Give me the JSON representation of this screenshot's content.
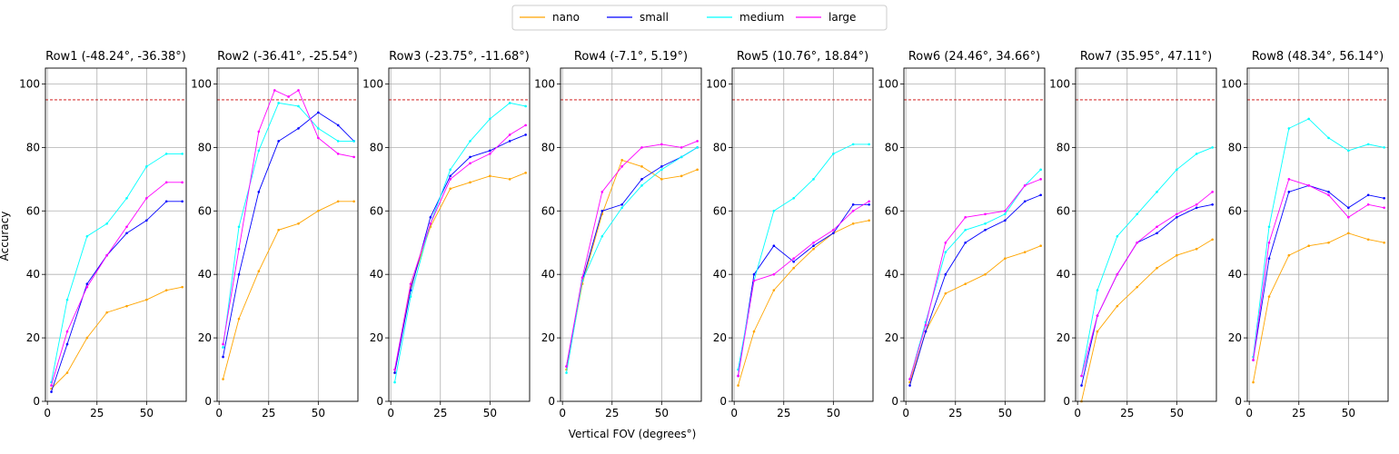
{
  "chart_data": {
    "type": "line",
    "xlabel": "Vertical FOV (degrees°)",
    "ylabel": "Accuracy",
    "xlim": [
      -1,
      70
    ],
    "ylim": [
      0,
      105
    ],
    "xticks": [
      0,
      25,
      50
    ],
    "yticks": [
      0,
      20,
      40,
      60,
      80,
      100
    ],
    "grid": true,
    "legend_position": "top-center",
    "threshold": {
      "value": 95,
      "color": "#cc0000",
      "style": "dashed"
    },
    "legend": [
      {
        "name": "nano",
        "color": "#ffa500"
      },
      {
        "name": "small",
        "color": "#0000ff"
      },
      {
        "name": "medium",
        "color": "#00ffff"
      },
      {
        "name": "large",
        "color": "#ff00ff"
      }
    ],
    "panels": [
      {
        "title": "Row1 (-48.24°, -36.38°)",
        "nano": [
          [
            2,
            4
          ],
          [
            10,
            9
          ],
          [
            20,
            20
          ],
          [
            30,
            28
          ],
          [
            40,
            30
          ],
          [
            50,
            32
          ],
          [
            60,
            35
          ],
          [
            68,
            36
          ]
        ],
        "small": [
          [
            2,
            3
          ],
          [
            10,
            18
          ],
          [
            20,
            37
          ],
          [
            30,
            46
          ],
          [
            40,
            53
          ],
          [
            50,
            57
          ],
          [
            60,
            63
          ],
          [
            68,
            63
          ]
        ],
        "medium": [
          [
            2,
            6
          ],
          [
            10,
            32
          ],
          [
            20,
            52
          ],
          [
            30,
            56
          ],
          [
            40,
            64
          ],
          [
            50,
            74
          ],
          [
            60,
            78
          ],
          [
            68,
            78
          ]
        ],
        "large": [
          [
            2,
            5
          ],
          [
            10,
            22
          ],
          [
            20,
            36
          ],
          [
            30,
            46
          ],
          [
            40,
            55
          ],
          [
            50,
            64
          ],
          [
            60,
            69
          ],
          [
            68,
            69
          ]
        ]
      },
      {
        "title": "Row2 (-36.41°, -25.54°)",
        "nano": [
          [
            2,
            7
          ],
          [
            10,
            26
          ],
          [
            20,
            41
          ],
          [
            30,
            54
          ],
          [
            40,
            56
          ],
          [
            50,
            60
          ],
          [
            60,
            63
          ],
          [
            68,
            63
          ]
        ],
        "small": [
          [
            2,
            14
          ],
          [
            10,
            40
          ],
          [
            20,
            66
          ],
          [
            30,
            82
          ],
          [
            40,
            86
          ],
          [
            50,
            91
          ],
          [
            60,
            87
          ],
          [
            68,
            82
          ]
        ],
        "medium": [
          [
            2,
            17
          ],
          [
            10,
            55
          ],
          [
            20,
            79
          ],
          [
            30,
            94
          ],
          [
            40,
            93
          ],
          [
            50,
            86
          ],
          [
            60,
            82
          ],
          [
            68,
            82
          ]
        ],
        "large": [
          [
            2,
            18
          ],
          [
            10,
            48
          ],
          [
            20,
            85
          ],
          [
            28,
            98
          ],
          [
            35,
            96
          ],
          [
            40,
            98
          ],
          [
            50,
            83
          ],
          [
            60,
            78
          ],
          [
            68,
            77
          ]
        ]
      },
      {
        "title": "Row3 (-23.75°, -11.68°)",
        "nano": [
          [
            2,
            9
          ],
          [
            10,
            36
          ],
          [
            20,
            55
          ],
          [
            30,
            67
          ],
          [
            40,
            69
          ],
          [
            50,
            71
          ],
          [
            60,
            70
          ],
          [
            68,
            72
          ]
        ],
        "small": [
          [
            2,
            9
          ],
          [
            10,
            35
          ],
          [
            20,
            58
          ],
          [
            30,
            71
          ],
          [
            40,
            77
          ],
          [
            50,
            79
          ],
          [
            60,
            82
          ],
          [
            68,
            84
          ]
        ],
        "medium": [
          [
            2,
            6
          ],
          [
            10,
            33
          ],
          [
            20,
            56
          ],
          [
            30,
            73
          ],
          [
            40,
            82
          ],
          [
            50,
            89
          ],
          [
            60,
            94
          ],
          [
            68,
            93
          ]
        ],
        "large": [
          [
            2,
            10
          ],
          [
            10,
            37
          ],
          [
            20,
            56
          ],
          [
            30,
            70
          ],
          [
            40,
            75
          ],
          [
            50,
            78
          ],
          [
            60,
            84
          ],
          [
            68,
            87
          ]
        ]
      },
      {
        "title": "Row4 (-7.1°, 5.19°)",
        "nano": [
          [
            2,
            10
          ],
          [
            10,
            37
          ],
          [
            20,
            59
          ],
          [
            30,
            76
          ],
          [
            40,
            74
          ],
          [
            50,
            70
          ],
          [
            60,
            71
          ],
          [
            68,
            73
          ]
        ],
        "small": [
          [
            2,
            11
          ],
          [
            10,
            38
          ],
          [
            20,
            60
          ],
          [
            30,
            62
          ],
          [
            40,
            70
          ],
          [
            50,
            74
          ],
          [
            60,
            77
          ],
          [
            68,
            80
          ]
        ],
        "medium": [
          [
            2,
            9
          ],
          [
            10,
            38
          ],
          [
            20,
            52
          ],
          [
            30,
            61
          ],
          [
            40,
            68
          ],
          [
            50,
            73
          ],
          [
            60,
            77
          ],
          [
            68,
            80
          ]
        ],
        "large": [
          [
            2,
            11
          ],
          [
            10,
            39
          ],
          [
            20,
            66
          ],
          [
            30,
            74
          ],
          [
            40,
            80
          ],
          [
            50,
            81
          ],
          [
            60,
            80
          ],
          [
            68,
            82
          ]
        ]
      },
      {
        "title": "Row5 (10.76°, 18.84°)",
        "nano": [
          [
            2,
            5
          ],
          [
            10,
            22
          ],
          [
            20,
            35
          ],
          [
            30,
            42
          ],
          [
            40,
            48
          ],
          [
            50,
            53
          ],
          [
            60,
            56
          ],
          [
            68,
            57
          ]
        ],
        "small": [
          [
            2,
            8
          ],
          [
            10,
            40
          ],
          [
            20,
            49
          ],
          [
            30,
            44
          ],
          [
            40,
            49
          ],
          [
            50,
            53
          ],
          [
            60,
            62
          ],
          [
            68,
            62
          ]
        ],
        "medium": [
          [
            2,
            10
          ],
          [
            10,
            38
          ],
          [
            20,
            60
          ],
          [
            30,
            64
          ],
          [
            40,
            70
          ],
          [
            50,
            78
          ],
          [
            60,
            81
          ],
          [
            68,
            81
          ]
        ],
        "large": [
          [
            2,
            8
          ],
          [
            10,
            38
          ],
          [
            20,
            40
          ],
          [
            30,
            45
          ],
          [
            40,
            50
          ],
          [
            50,
            54
          ],
          [
            60,
            60
          ],
          [
            68,
            63
          ]
        ]
      },
      {
        "title": "Row6 (24.46°, 34.66°)",
        "nano": [
          [
            2,
            6
          ],
          [
            10,
            22
          ],
          [
            20,
            34
          ],
          [
            30,
            37
          ],
          [
            40,
            40
          ],
          [
            50,
            45
          ],
          [
            60,
            47
          ],
          [
            68,
            49
          ]
        ],
        "small": [
          [
            2,
            5
          ],
          [
            10,
            22
          ],
          [
            20,
            40
          ],
          [
            30,
            50
          ],
          [
            40,
            54
          ],
          [
            50,
            57
          ],
          [
            60,
            63
          ],
          [
            68,
            65
          ]
        ],
        "medium": [
          [
            2,
            7
          ],
          [
            10,
            25
          ],
          [
            20,
            47
          ],
          [
            30,
            54
          ],
          [
            40,
            56
          ],
          [
            50,
            59
          ],
          [
            60,
            68
          ],
          [
            68,
            73
          ]
        ],
        "large": [
          [
            2,
            7
          ],
          [
            10,
            24
          ],
          [
            20,
            50
          ],
          [
            30,
            58
          ],
          [
            40,
            59
          ],
          [
            50,
            60
          ],
          [
            60,
            68
          ],
          [
            68,
            70
          ]
        ]
      },
      {
        "title": "Row7 (35.95°, 47.11°)",
        "nano": [
          [
            2,
            0
          ],
          [
            10,
            22
          ],
          [
            20,
            30
          ],
          [
            30,
            36
          ],
          [
            40,
            42
          ],
          [
            50,
            46
          ],
          [
            60,
            48
          ],
          [
            68,
            51
          ]
        ],
        "small": [
          [
            2,
            5
          ],
          [
            10,
            27
          ],
          [
            20,
            40
          ],
          [
            30,
            50
          ],
          [
            40,
            53
          ],
          [
            50,
            58
          ],
          [
            60,
            61
          ],
          [
            68,
            62
          ]
        ],
        "medium": [
          [
            2,
            8
          ],
          [
            10,
            35
          ],
          [
            20,
            52
          ],
          [
            30,
            59
          ],
          [
            40,
            66
          ],
          [
            50,
            73
          ],
          [
            60,
            78
          ],
          [
            68,
            80
          ]
        ],
        "large": [
          [
            2,
            8
          ],
          [
            10,
            27
          ],
          [
            20,
            40
          ],
          [
            30,
            50
          ],
          [
            40,
            55
          ],
          [
            50,
            59
          ],
          [
            60,
            62
          ],
          [
            68,
            66
          ]
        ]
      },
      {
        "title": "Row8 (48.34°, 56.14°)",
        "nano": [
          [
            2,
            6
          ],
          [
            10,
            33
          ],
          [
            20,
            46
          ],
          [
            30,
            49
          ],
          [
            40,
            50
          ],
          [
            50,
            53
          ],
          [
            60,
            51
          ],
          [
            68,
            50
          ]
        ],
        "small": [
          [
            2,
            13
          ],
          [
            10,
            45
          ],
          [
            20,
            66
          ],
          [
            30,
            68
          ],
          [
            40,
            66
          ],
          [
            50,
            61
          ],
          [
            60,
            65
          ],
          [
            68,
            64
          ]
        ],
        "medium": [
          [
            2,
            14
          ],
          [
            10,
            55
          ],
          [
            20,
            86
          ],
          [
            30,
            89
          ],
          [
            40,
            83
          ],
          [
            50,
            79
          ],
          [
            60,
            81
          ],
          [
            68,
            80
          ]
        ],
        "large": [
          [
            2,
            13
          ],
          [
            10,
            50
          ],
          [
            20,
            70
          ],
          [
            30,
            68
          ],
          [
            40,
            65
          ],
          [
            50,
            58
          ],
          [
            60,
            62
          ],
          [
            68,
            61
          ]
        ]
      }
    ]
  }
}
